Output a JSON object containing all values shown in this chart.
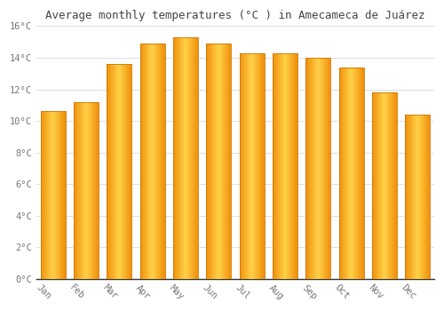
{
  "title": "Average monthly temperatures (°C ) in Amecameca de Juárez",
  "months": [
    "Jan",
    "Feb",
    "Mar",
    "Apr",
    "May",
    "Jun",
    "Jul",
    "Aug",
    "Sep",
    "Oct",
    "Nov",
    "Dec"
  ],
  "values": [
    10.6,
    11.2,
    13.6,
    14.9,
    15.3,
    14.9,
    14.3,
    14.3,
    14.0,
    13.4,
    11.8,
    10.4
  ],
  "bar_color_center": "#FFD060",
  "bar_color_edge": "#F0900A",
  "ylim": [
    0,
    16
  ],
  "yticks": [
    0,
    2,
    4,
    6,
    8,
    10,
    12,
    14,
    16
  ],
  "ytick_labels": [
    "0°C",
    "2°C",
    "4°C",
    "6°C",
    "8°C",
    "10°C",
    "12°C",
    "14°C",
    "16°C"
  ],
  "background_color": "#FFFFFF",
  "plot_bg_color": "#FFFFFF",
  "grid_color": "#DDDDDD",
  "title_fontsize": 9,
  "tick_fontsize": 7.5,
  "title_color": "#444444",
  "tick_color": "#777777",
  "xlabel_rotation": -45,
  "bar_width": 0.75
}
